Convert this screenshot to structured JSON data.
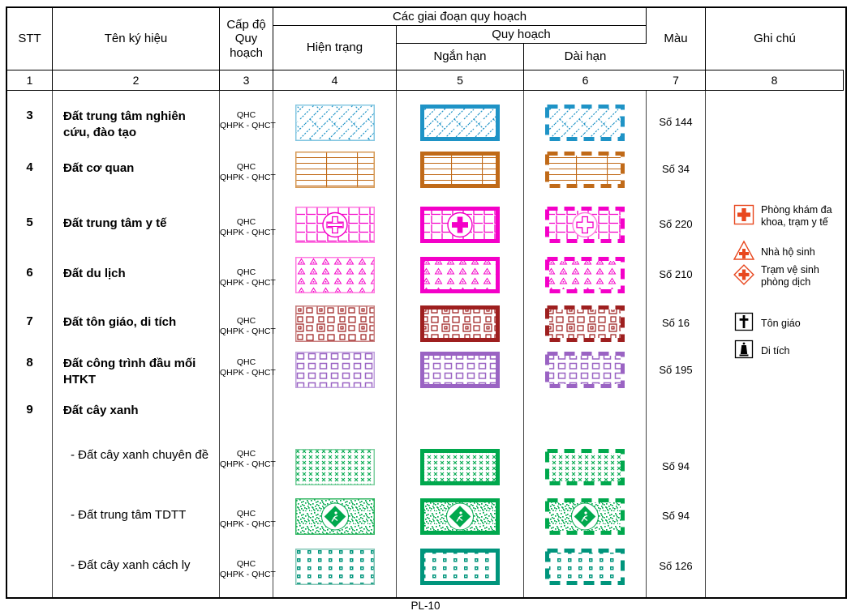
{
  "header": {
    "stt": "STT",
    "ten_ky_hieu": "Tên ký hiệu",
    "cap_do_quy_hoach": "Cấp độ Quy hoạch",
    "giai_doan": "Các giai đoạn quy hoạch",
    "hien_trang": "Hiện trạng",
    "quy_hoach": "Quy hoạch",
    "ngan_han": "Ngắn hạn",
    "dai_han": "Dài hạn",
    "mau": "Màu",
    "ghi_chu": "Ghi chú",
    "col_numbers": [
      "1",
      "2",
      "3",
      "4",
      "5",
      "6",
      "7",
      "8"
    ]
  },
  "rows": [
    {
      "stt": "3",
      "name": "Đất trung tâm nghiên cứu, đào tạo",
      "level1": "QHC",
      "level2": "QHPK - QHCT",
      "pattern": "herringbone",
      "color": "#1E93C6",
      "light": "#85C7E2",
      "mau": "Số 144",
      "sub": false
    },
    {
      "stt": "4",
      "name": "Đất cơ quan",
      "level1": "QHC",
      "level2": "QHPK - QHCT",
      "pattern": "courses",
      "color": "#C06A18",
      "light": "#D79A55",
      "mau": "Số 34",
      "sub": false
    },
    {
      "stt": "5",
      "name": "Đất trung tâm y tế",
      "level1": "QHC",
      "level2": "QHPK - QHCT",
      "pattern": "grid-cross",
      "color": "#F400C8",
      "light": "#FF7BE0",
      "mau": "Số 220",
      "sub": false,
      "emblem": "medical-cross"
    },
    {
      "stt": "6",
      "name": "Đất du lịch",
      "level1": "QHC",
      "level2": "QHPK - QHCT",
      "pattern": "triangles",
      "color": "#F400C8",
      "light": "#FF7BE0",
      "mau": "Số 210",
      "sub": false
    },
    {
      "stt": "7",
      "name": "Đất tôn giáo, di tích",
      "level1": "QHC",
      "level2": "QHPK - QHCT",
      "pattern": "temple",
      "color": "#9E1F1F",
      "light": "#C98080",
      "mau": "Số 16",
      "sub": false
    },
    {
      "stt": "8",
      "name": "Đất công trình đầu mối HTKT",
      "level1": "QHC",
      "level2": "QHPK - QHCT",
      "pattern": "small-squares",
      "color": "#9A63C3",
      "light": "#BFA0DC",
      "mau": "Số 195",
      "sub": false
    },
    {
      "stt": "9",
      "name": "Đất cây xanh",
      "level1": "",
      "level2": "",
      "pattern": "",
      "color": "",
      "light": "",
      "mau": "",
      "sub": false
    },
    {
      "stt": "",
      "name": "- Đất cây xanh chuyên đề",
      "level1": "QHC",
      "level2": "QHPK - QHCT",
      "pattern": "green-check",
      "color": "#00A84D",
      "light": "#7CCF9E",
      "mau": "Số 94",
      "sub": true
    },
    {
      "stt": "",
      "name": "- Đất trung tâm TDTT",
      "level1": "QHC",
      "level2": "QHPK - QHCT",
      "pattern": "noise",
      "color": "#00A84D",
      "light": "#2DB45F",
      "mau": "Số 94",
      "sub": true,
      "emblem": "sport-diamond"
    },
    {
      "stt": "",
      "name": "- Đất cây xanh cách ly",
      "level1": "QHC",
      "level2": "QHPK - QHCT",
      "pattern": "dot-grid",
      "color": "#00957C",
      "light": "#7FC4B4",
      "mau": "Số 126",
      "sub": true
    }
  ],
  "notes": [
    {
      "icon": "clinic-square-cross-icon",
      "color": "#E8481F",
      "label": "Phòng khám đa khoa, trạm y tế"
    },
    {
      "icon": "maternity-triangle-cross-icon",
      "color": "#E8481F",
      "label": "Nhà hộ sinh"
    },
    {
      "icon": "sanitary-diamond-cross-icon",
      "color": "#E8481F",
      "label": "Trạm vệ sinh phòng dịch"
    },
    {
      "icon": "religion-cross-icon",
      "color": "#000000",
      "label": "Tôn giáo"
    },
    {
      "icon": "relic-stupa-icon",
      "color": "#000000",
      "label": "Di tích"
    }
  ],
  "footer": "PL-10"
}
